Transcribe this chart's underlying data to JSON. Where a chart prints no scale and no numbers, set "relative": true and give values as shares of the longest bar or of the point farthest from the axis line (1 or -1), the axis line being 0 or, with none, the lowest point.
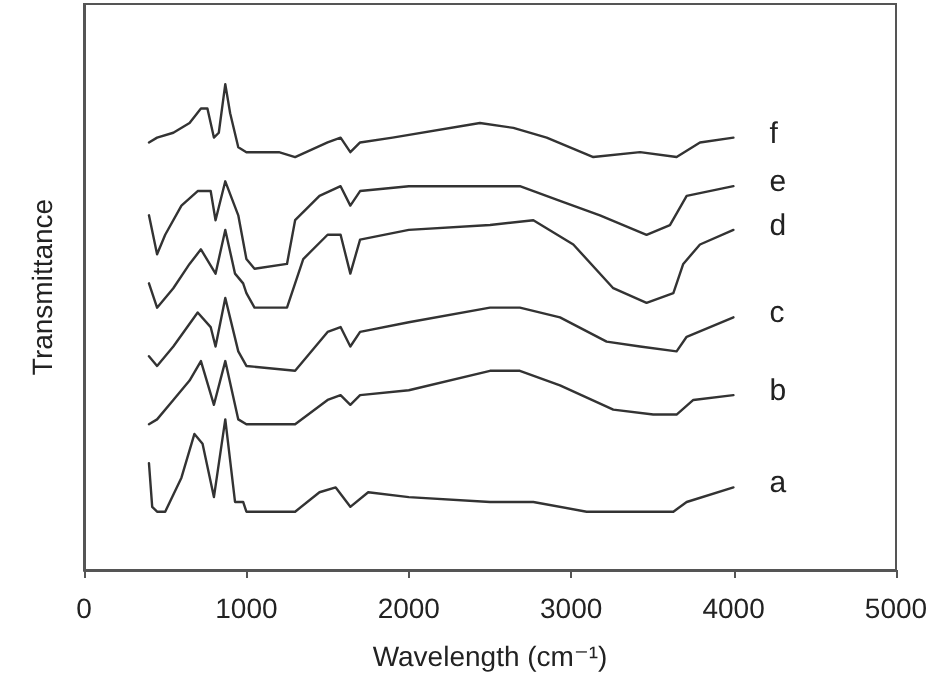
{
  "chart_data": {
    "type": "line",
    "relative": true,
    "xlabel": "Wavelength (cm⁻¹)",
    "ylabel": "Transmittance",
    "xlim": [
      0,
      5000
    ],
    "xticks": [
      0,
      1000,
      2000,
      3000,
      4000,
      5000
    ],
    "grid": false,
    "legend": false,
    "marker": "none",
    "line_style": "solid",
    "series": [
      {
        "name": "a",
        "color": "#333333",
        "x": [
          400,
          420,
          450,
          500,
          600,
          680,
          730,
          800,
          870,
          930,
          980,
          1000,
          1300,
          1450,
          1550,
          1640,
          1750,
          2000,
          2500,
          2767,
          3095,
          3629,
          3711,
          3999
        ],
        "values": [
          0.22,
          0.13,
          0.12,
          0.12,
          0.19,
          0.28,
          0.26,
          0.15,
          0.31,
          0.14,
          0.14,
          0.12,
          0.12,
          0.16,
          0.17,
          0.13,
          0.16,
          0.15,
          0.14,
          0.14,
          0.12,
          0.12,
          0.14,
          0.17
        ]
      },
      {
        "name": "b",
        "color": "#333333",
        "x": [
          400,
          450,
          550,
          650,
          720,
          800,
          870,
          950,
          1000,
          1300,
          1500,
          1580,
          1640,
          1700,
          2000,
          2500,
          2684,
          2931,
          3259,
          3505,
          3649,
          3752,
          3999
        ],
        "values": [
          0.3,
          0.31,
          0.35,
          0.39,
          0.43,
          0.34,
          0.43,
          0.31,
          0.3,
          0.3,
          0.35,
          0.36,
          0.34,
          0.36,
          0.37,
          0.41,
          0.41,
          0.38,
          0.33,
          0.32,
          0.32,
          0.35,
          0.36
        ]
      },
      {
        "name": "c",
        "color": "#333333",
        "x": [
          400,
          450,
          550,
          700,
          780,
          810,
          870,
          950,
          1000,
          1300,
          1500,
          1580,
          1640,
          1700,
          2000,
          2500,
          2684,
          2931,
          3218,
          3424,
          3649,
          3711,
          3999
        ],
        "values": [
          0.44,
          0.42,
          0.46,
          0.53,
          0.5,
          0.46,
          0.56,
          0.45,
          0.42,
          0.41,
          0.49,
          0.5,
          0.46,
          0.49,
          0.51,
          0.54,
          0.54,
          0.52,
          0.47,
          0.46,
          0.45,
          0.48,
          0.52
        ]
      },
      {
        "name": "d",
        "color": "#333333",
        "x": [
          400,
          450,
          550,
          650,
          720,
          810,
          870,
          930,
          980,
          1000,
          1050,
          1250,
          1350,
          1500,
          1580,
          1640,
          1700,
          2000,
          2500,
          2767,
          3013,
          3259,
          3464,
          3629,
          3690,
          3793,
          3999
        ],
        "values": [
          0.59,
          0.54,
          0.58,
          0.63,
          0.66,
          0.61,
          0.7,
          0.61,
          0.59,
          0.57,
          0.54,
          0.54,
          0.64,
          0.69,
          0.69,
          0.61,
          0.68,
          0.7,
          0.71,
          0.72,
          0.67,
          0.58,
          0.55,
          0.57,
          0.63,
          0.67,
          0.7
        ]
      },
      {
        "name": "e",
        "color": "#333333",
        "x": [
          400,
          450,
          500,
          600,
          700,
          780,
          810,
          870,
          950,
          1000,
          1050,
          1250,
          1300,
          1450,
          1580,
          1640,
          1700,
          2000,
          2500,
          2684,
          2931,
          3177,
          3464,
          3608,
          3711,
          3999
        ],
        "values": [
          0.73,
          0.65,
          0.69,
          0.75,
          0.78,
          0.78,
          0.72,
          0.8,
          0.73,
          0.64,
          0.62,
          0.63,
          0.72,
          0.77,
          0.79,
          0.75,
          0.78,
          0.79,
          0.79,
          0.79,
          0.76,
          0.73,
          0.69,
          0.71,
          0.77,
          0.79
        ]
      },
      {
        "name": "f",
        "color": "#333333",
        "x": [
          400,
          450,
          550,
          650,
          720,
          760,
          800,
          830,
          870,
          900,
          950,
          1000,
          1200,
          1300,
          1500,
          1580,
          1640,
          1700,
          1900,
          2438,
          2644,
          2849,
          3136,
          3424,
          3649,
          3793,
          3999
        ],
        "values": [
          0.88,
          0.89,
          0.9,
          0.92,
          0.95,
          0.95,
          0.89,
          0.9,
          1.0,
          0.94,
          0.87,
          0.86,
          0.86,
          0.85,
          0.88,
          0.89,
          0.86,
          0.88,
          0.89,
          0.92,
          0.91,
          0.89,
          0.85,
          0.86,
          0.85,
          0.88,
          0.89
        ]
      }
    ]
  }
}
